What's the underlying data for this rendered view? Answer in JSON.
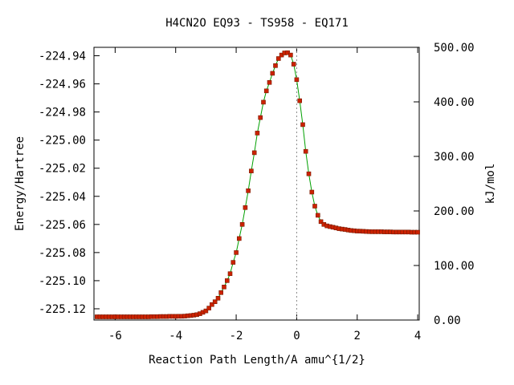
{
  "chart_data": {
    "type": "line",
    "title": "H4CN2O   EQ93 - TS958 - EQ171",
    "xlabel": "Reaction Path Length/A amu^{1/2}",
    "ylabel": "Energy/Hartree",
    "y2label": "kJ/mol",
    "xlim": [
      -6.7,
      4.05
    ],
    "ylim": [
      -225.128,
      -224.934
    ],
    "y2lim": [
      0,
      500
    ],
    "x_ticks": [
      -6,
      -4,
      -2,
      0,
      2,
      4
    ],
    "x_tick_labels": [
      "-6",
      "-4",
      "-2",
      "0",
      "2",
      "4"
    ],
    "y_ticks": [
      -224.94,
      -224.96,
      -224.98,
      -225.0,
      -225.02,
      -225.04,
      -225.06,
      -225.08,
      -225.1,
      -225.12
    ],
    "y_tick_labels": [
      "-224.94",
      "-224.96",
      "-224.98",
      "-225.00",
      "-225.02",
      "-225.04",
      "-225.06",
      "-225.08",
      "-225.10",
      "-225.12"
    ],
    "y2_ticks": [
      500,
      400,
      300,
      200,
      100,
      0
    ],
    "y2_tick_labels": [
      "500.00",
      "400.00",
      "300.00",
      "200.00",
      "100.00",
      "0.00"
    ],
    "ts_marker_x": 0,
    "line_color": "#00a000",
    "point_color": "#cc2200",
    "marker_edge_color": "#7a1a00",
    "ts_line_color": "#888888",
    "series": [
      {
        "x": [
          -6.6,
          -6.5,
          -6.4,
          -6.3,
          -6.2,
          -6.1,
          -6.0,
          -5.9,
          -5.8,
          -5.7,
          -5.6,
          -5.5,
          -5.4,
          -5.3,
          -5.2,
          -5.1,
          -5.0,
          -4.9,
          -4.8,
          -4.7,
          -4.6,
          -4.5,
          -4.4,
          -4.3,
          -4.2,
          -4.1,
          -4.0,
          -3.9,
          -3.8,
          -3.7,
          -3.6,
          -3.5,
          -3.4,
          -3.3,
          -3.2,
          -3.1,
          -3.0,
          -2.9,
          -2.8,
          -2.7,
          -2.6,
          -2.5,
          -2.4,
          -2.3,
          -2.2,
          -2.1,
          -2.0,
          -1.9,
          -1.8,
          -1.7,
          -1.6,
          -1.5,
          -1.4,
          -1.3,
          -1.2,
          -1.1,
          -1.0,
          -0.9,
          -0.8,
          -0.7,
          -0.6,
          -0.5,
          -0.4,
          -0.3,
          -0.2,
          -0.1,
          0.0,
          0.1,
          0.2,
          0.3,
          0.4,
          0.5,
          0.6,
          0.7,
          0.8,
          0.9,
          1.0,
          1.1,
          1.2,
          1.3,
          1.4,
          1.5,
          1.6,
          1.7,
          1.8,
          1.9,
          2.0,
          2.1,
          2.2,
          2.3,
          2.4,
          2.5,
          2.6,
          2.7,
          2.8,
          2.9,
          3.0,
          3.1,
          3.2,
          3.3,
          3.4,
          3.5,
          3.6,
          3.7,
          3.8,
          3.9,
          4.0
        ],
        "y": [
          -225.1257,
          -225.1257,
          -225.1257,
          -225.1257,
          -225.1257,
          -225.1257,
          -225.1257,
          -225.1257,
          -225.1257,
          -225.1257,
          -225.1257,
          -225.1257,
          -225.1257,
          -225.1257,
          -225.1257,
          -225.1257,
          -225.1257,
          -225.1257,
          -225.1256,
          -225.1256,
          -225.1256,
          -225.1255,
          -225.1255,
          -225.1255,
          -225.1254,
          -225.1254,
          -225.1254,
          -225.1253,
          -225.1253,
          -225.1252,
          -225.125,
          -225.1248,
          -225.1245,
          -225.1242,
          -225.1235,
          -225.1225,
          -225.1215,
          -225.1195,
          -225.117,
          -225.115,
          -225.1125,
          -225.1085,
          -225.1045,
          -225.1,
          -225.095,
          -225.087,
          -225.08,
          -225.07,
          -225.06,
          -225.048,
          -225.036,
          -225.022,
          -225.009,
          -224.995,
          -224.984,
          -224.973,
          -224.965,
          -224.959,
          -224.9525,
          -224.947,
          -224.942,
          -224.9395,
          -224.938,
          -224.9378,
          -224.9395,
          -224.946,
          -224.957,
          -224.972,
          -224.989,
          -225.008,
          -225.024,
          -225.037,
          -225.047,
          -225.0535,
          -225.058,
          -225.06,
          -225.061,
          -225.0615,
          -225.062,
          -225.0625,
          -225.063,
          -225.0633,
          -225.0636,
          -225.064,
          -225.0643,
          -225.0645,
          -225.0647,
          -225.0648,
          -225.0649,
          -225.065,
          -225.0651,
          -225.0652,
          -225.0652,
          -225.0652,
          -225.0652,
          -225.0653,
          -225.0653,
          -225.0653,
          -225.0654,
          -225.0654,
          -225.0654,
          -225.0654,
          -225.0654,
          -225.0654,
          -225.0655,
          -225.0655,
          -225.0655
        ]
      }
    ]
  }
}
